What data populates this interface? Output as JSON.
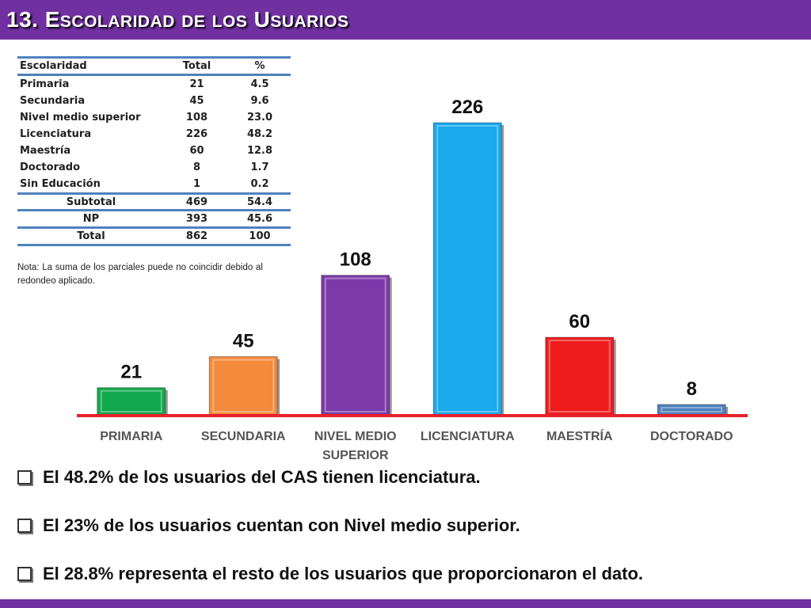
{
  "title": {
    "number": "13.",
    "words": [
      {
        "first": "E",
        "rest": "SCOLARIDAD"
      },
      {
        "first": "",
        "rest": "DE"
      },
      {
        "first": "",
        "rest": "LOS"
      },
      {
        "first": "U",
        "rest": "SUARIOS"
      }
    ]
  },
  "table": {
    "headers": [
      "Escolaridad",
      "Total",
      "%"
    ],
    "rows": [
      [
        "Primaria",
        "21",
        "4.5"
      ],
      [
        "Secundaria",
        "45",
        "9.6"
      ],
      [
        "Nivel medio superior",
        "108",
        "23.0"
      ],
      [
        "Licenciatura",
        "226",
        "48.2"
      ],
      [
        "Maestría",
        "60",
        "12.8"
      ],
      [
        "Doctorado",
        "8",
        "1.7"
      ],
      [
        "Sin Educación",
        "1",
        "0.2"
      ]
    ],
    "subtotal": [
      "Subtotal",
      "469",
      "54.4"
    ],
    "np": [
      "NP",
      "393",
      "45.6"
    ],
    "total": [
      "Total",
      "862",
      "100"
    ]
  },
  "note": "Nota: La suma de los parciales puede no coincidir debido al redondeo aplicado.",
  "chart_data": {
    "type": "bar",
    "categories": [
      [
        "PRIMARIA"
      ],
      [
        "SECUNDARIA"
      ],
      [
        "NIVEL MEDIO",
        "SUPERIOR"
      ],
      [
        "LICENCIATURA"
      ],
      [
        "MAESTRÍA"
      ],
      [
        "DOCTORADO"
      ]
    ],
    "values": [
      21,
      45,
      108,
      226,
      60,
      8
    ],
    "data_labels": [
      "21",
      "45",
      "108",
      "226",
      "60",
      "8"
    ],
    "colors": [
      "#12a84e",
      "#f48a3c",
      "#7b3aa8",
      "#19a9ec",
      "#ee1c1c",
      "#4f81bd"
    ],
    "baseline_color": "#e8202a",
    "grid": false,
    "legend": "none",
    "ylim": [
      0,
      226
    ]
  },
  "bullets": [
    "El 48.2% de los usuarios del CAS tienen licenciatura.",
    "El 23% de los usuarios cuentan con Nivel medio superior.",
    "El  28.8% representa el resto de los usuarios que proporcionaron el dato."
  ]
}
